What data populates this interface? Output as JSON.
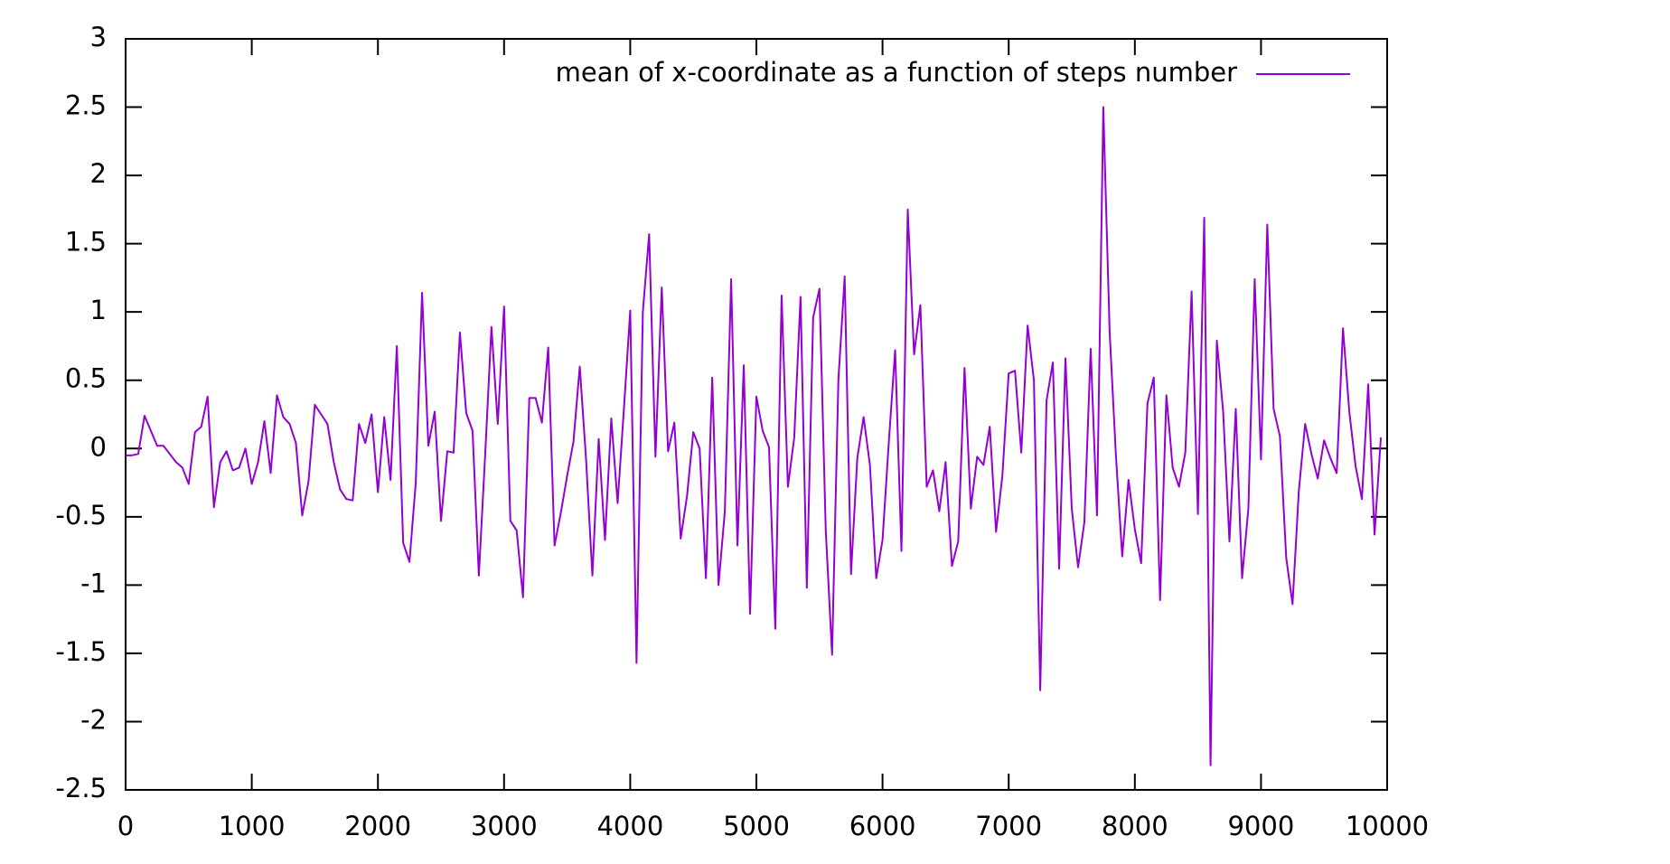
{
  "chart_data": {
    "type": "line",
    "x": [
      0,
      50,
      100,
      150,
      200,
      250,
      300,
      350,
      400,
      450,
      500,
      550,
      600,
      650,
      700,
      750,
      800,
      850,
      900,
      950,
      1000,
      1050,
      1100,
      1150,
      1200,
      1250,
      1300,
      1350,
      1400,
      1450,
      1500,
      1550,
      1600,
      1650,
      1700,
      1750,
      1800,
      1850,
      1900,
      1950,
      2000,
      2050,
      2100,
      2150,
      2200,
      2250,
      2300,
      2350,
      2400,
      2450,
      2500,
      2550,
      2600,
      2650,
      2700,
      2750,
      2800,
      2850,
      2900,
      2950,
      3000,
      3050,
      3100,
      3150,
      3200,
      3250,
      3300,
      3350,
      3400,
      3450,
      3500,
      3550,
      3600,
      3650,
      3700,
      3750,
      3800,
      3850,
      3900,
      3950,
      4000,
      4050,
      4100,
      4150,
      4200,
      4250,
      4300,
      4350,
      4400,
      4450,
      4500,
      4550,
      4600,
      4650,
      4700,
      4750,
      4800,
      4850,
      4900,
      4950,
      5000,
      5050,
      5100,
      5150,
      5200,
      5250,
      5300,
      5350,
      5400,
      5450,
      5500,
      5550,
      5600,
      5650,
      5700,
      5750,
      5800,
      5850,
      5900,
      5950,
      6000,
      6050,
      6100,
      6150,
      6200,
      6250,
      6300,
      6350,
      6400,
      6450,
      6500,
      6550,
      6600,
      6650,
      6700,
      6750,
      6800,
      6850,
      6900,
      6950,
      7000,
      7050,
      7100,
      7150,
      7200,
      7250,
      7300,
      7350,
      7400,
      7450,
      7500,
      7550,
      7600,
      7650,
      7700,
      7750,
      7800,
      7850,
      7900,
      7950,
      8000,
      8050,
      8100,
      8150,
      8200,
      8250,
      8300,
      8350,
      8400,
      8450,
      8500,
      8550,
      8600,
      8650,
      8700,
      8750,
      8800,
      8850,
      8900,
      8950,
      9000,
      9050,
      9100,
      9150,
      9200,
      9250,
      9300,
      9350,
      9400,
      9450,
      9500,
      9550,
      9600,
      9650,
      9700,
      9750,
      9800,
      9850,
      9900,
      9950
    ],
    "series": [
      {
        "name": "mean of x-coordinate as a function of steps number",
        "color": "#9400d3",
        "values": [
          -0.05,
          -0.05,
          -0.04,
          0.24,
          0.13,
          0.02,
          0.02,
          -0.04,
          -0.1,
          -0.14,
          -0.26,
          0.12,
          0.16,
          0.38,
          -0.43,
          -0.1,
          -0.02,
          -0.16,
          -0.14,
          0.0,
          -0.26,
          -0.1,
          0.2,
          -0.18,
          0.39,
          0.23,
          0.18,
          0.04,
          -0.49,
          -0.24,
          0.32,
          0.25,
          0.18,
          -0.1,
          -0.3,
          -0.37,
          -0.38,
          0.18,
          0.04,
          0.25,
          -0.32,
          0.23,
          -0.23,
          0.75,
          -0.69,
          -0.83,
          -0.25,
          1.14,
          0.02,
          0.27,
          -0.53,
          -0.02,
          -0.03,
          0.85,
          0.26,
          0.13,
          -0.93,
          -0.05,
          0.89,
          0.18,
          1.04,
          -0.53,
          -0.6,
          -1.09,
          0.37,
          0.37,
          0.19,
          0.74,
          -0.71,
          -0.47,
          -0.2,
          0.05,
          0.6,
          -0.08,
          -0.93,
          0.07,
          -0.67,
          0.22,
          -0.4,
          0.29,
          1.01,
          -1.57,
          1.0,
          1.57,
          -0.06,
          1.18,
          -0.02,
          0.19,
          -0.66,
          -0.35,
          0.12,
          0.0,
          -0.95,
          0.52,
          -1.0,
          -0.46,
          1.24,
          -0.71,
          0.61,
          -1.21,
          0.38,
          0.13,
          0.01,
          -1.32,
          1.12,
          -0.28,
          0.08,
          1.11,
          -1.02,
          0.96,
          1.17,
          -0.6,
          -1.51,
          0.5,
          1.26,
          -0.92,
          -0.07,
          0.23,
          -0.12,
          -0.95,
          -0.67,
          0.05,
          0.72,
          -0.75,
          1.75,
          0.69,
          1.05,
          -0.28,
          -0.16,
          -0.46,
          -0.1,
          -0.86,
          -0.68,
          0.59,
          -0.44,
          -0.06,
          -0.12,
          0.16,
          -0.61,
          -0.2,
          0.55,
          0.57,
          -0.03,
          0.9,
          0.5,
          -1.77,
          0.35,
          0.63,
          -0.88,
          0.66,
          -0.44,
          -0.87,
          -0.54,
          0.73,
          -0.49,
          2.5,
          0.86,
          -0.05,
          -0.79,
          -0.23,
          -0.59,
          -0.84,
          0.33,
          0.52,
          -1.11,
          0.39,
          -0.14,
          -0.28,
          -0.03,
          1.15,
          -0.48,
          1.69,
          -2.32,
          0.79,
          0.27,
          -0.68,
          0.29,
          -0.95,
          -0.44,
          1.24,
          -0.08,
          1.64,
          0.29,
          0.09,
          -0.8,
          -1.14,
          -0.31,
          0.18,
          -0.04,
          -0.22,
          0.06,
          -0.07,
          -0.18,
          0.88,
          0.27,
          -0.13,
          -0.37,
          0.47,
          -0.63,
          0.08
        ]
      }
    ],
    "xlim": [
      0,
      10000
    ],
    "xticks": [
      0,
      1000,
      2000,
      3000,
      4000,
      5000,
      6000,
      7000,
      8000,
      9000,
      10000
    ],
    "ylim": [
      -2.5,
      3
    ],
    "yticks": [
      -2.5,
      -2,
      -1.5,
      -1,
      -0.5,
      0,
      0.5,
      1,
      1.5,
      2,
      2.5,
      3
    ],
    "legend": "upper right"
  }
}
